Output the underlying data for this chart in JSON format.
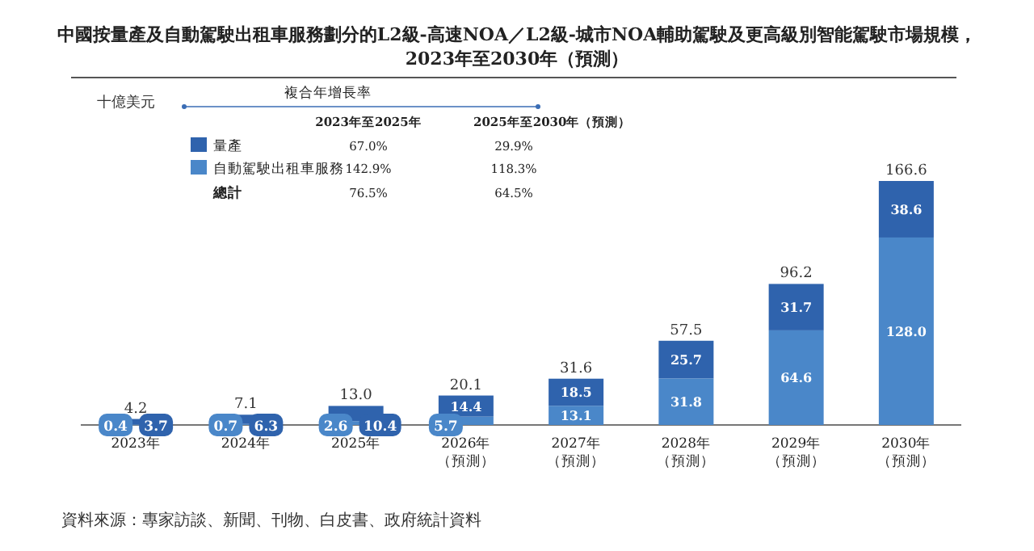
{
  "chart_data": {
    "type": "bar",
    "title": "中國按量產及自動駕駛出租車服務劃分的L2級-高速NOA／L2級-城市NOA輔助駕駛及更高級別智能駕駛市場規模，",
    "subtitle": "2023年至2030年（預測）",
    "ylabel": "十億美元",
    "categories": [
      "2023年",
      "2024年",
      "2025年",
      "2026年（預測）",
      "2027年（預測）",
      "2028年（預測）",
      "2029年（預測）",
      "2030年（預測）"
    ],
    "stacked": true,
    "legend": "top left",
    "series": [
      {
        "name": "自動駕駛出租車服務",
        "color": "#4a87c9",
        "values": [
          0.4,
          0.7,
          2.6,
          5.7,
          13.1,
          31.8,
          64.6,
          128.0
        ],
        "value_labels": [
          "0.4",
          "0.7",
          "2.6",
          "5.7",
          "13.1",
          "31.8",
          "64.6",
          "128.0"
        ]
      },
      {
        "name": "量產",
        "color": "#2f63ad",
        "values": [
          3.7,
          6.3,
          10.4,
          14.4,
          18.5,
          25.7,
          31.7,
          38.6
        ],
        "value_labels": [
          "3.7",
          "6.3",
          "10.4",
          "14.4",
          "18.5",
          "25.7",
          "31.7",
          "38.6"
        ]
      }
    ],
    "totals": [
      "4.2",
      "7.1",
      "13.0",
      "20.1",
      "31.6",
      "57.5",
      "96.2",
      "166.6"
    ],
    "annotations": [
      "複合年增長率",
      "2023年至2025年",
      "2025年至2030年（預測）",
      "67.0%",
      "29.9%",
      "142.9%",
      "118.3%",
      "總計",
      "76.5%",
      "64.5%",
      "資料來源：專家訪談、新聞、刊物、白皮書、政府統計資料"
    ]
  }
}
